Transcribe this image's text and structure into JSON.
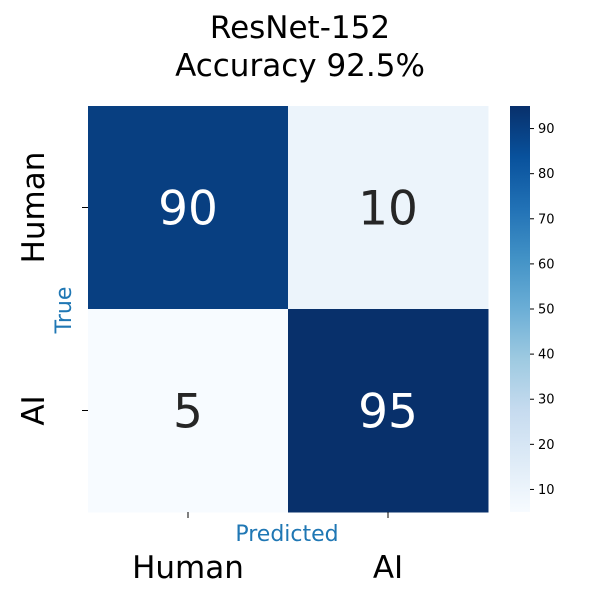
{
  "chart_data": {
    "type": "heatmap",
    "title_line1": "ResNet-152",
    "title_line2": "Accuracy 92.5%",
    "xlabel": "Predicted",
    "ylabel": "True",
    "x_categories": [
      "Human",
      "AI"
    ],
    "y_categories": [
      "Human",
      "AI"
    ],
    "values": [
      [
        90,
        10
      ],
      [
        5,
        95
      ]
    ],
    "colormap": "Blues",
    "vmin": 5,
    "vmax": 95,
    "colorbar_ticks": [
      10,
      20,
      30,
      40,
      50,
      60,
      70,
      80,
      90
    ],
    "label_color": "#1f77b4"
  }
}
